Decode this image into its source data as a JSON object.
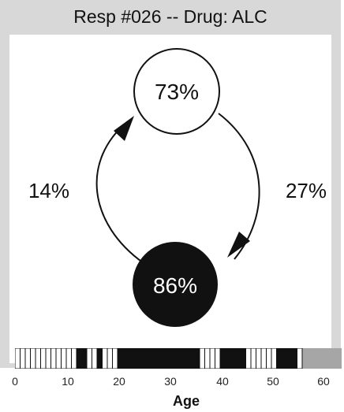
{
  "title": "Resp #026 -- Drug: ALC",
  "states": {
    "top": {
      "label": "73%"
    },
    "bottom": {
      "label": "86%"
    }
  },
  "transitions": {
    "left": {
      "label": "14%"
    },
    "right": {
      "label": "27%"
    }
  },
  "timeline": {
    "ages": [
      {
        "age": 1,
        "filled": false
      },
      {
        "age": 2,
        "filled": false
      },
      {
        "age": 3,
        "filled": false
      },
      {
        "age": 4,
        "filled": false
      },
      {
        "age": 5,
        "filled": false
      },
      {
        "age": 6,
        "filled": false
      },
      {
        "age": 7,
        "filled": false
      },
      {
        "age": 8,
        "filled": false
      },
      {
        "age": 9,
        "filled": false
      },
      {
        "age": 10,
        "filled": false
      },
      {
        "age": 11,
        "filled": false
      },
      {
        "age": 12,
        "filled": false
      },
      {
        "age": 13,
        "filled": true
      },
      {
        "age": 14,
        "filled": true
      },
      {
        "age": 15,
        "filled": false
      },
      {
        "age": 16,
        "filled": false
      },
      {
        "age": 17,
        "filled": true
      },
      {
        "age": 18,
        "filled": false
      },
      {
        "age": 19,
        "filled": false
      },
      {
        "age": 20,
        "filled": false
      },
      {
        "age": 21,
        "filled": true
      },
      {
        "age": 22,
        "filled": true
      },
      {
        "age": 23,
        "filled": true
      },
      {
        "age": 24,
        "filled": true
      },
      {
        "age": 25,
        "filled": true
      },
      {
        "age": 26,
        "filled": true
      },
      {
        "age": 27,
        "filled": true
      },
      {
        "age": 28,
        "filled": true
      },
      {
        "age": 29,
        "filled": true
      },
      {
        "age": 30,
        "filled": true
      },
      {
        "age": 31,
        "filled": true
      },
      {
        "age": 32,
        "filled": true
      },
      {
        "age": 33,
        "filled": true
      },
      {
        "age": 34,
        "filled": true
      },
      {
        "age": 35,
        "filled": true
      },
      {
        "age": 36,
        "filled": true
      },
      {
        "age": 37,
        "filled": false
      },
      {
        "age": 38,
        "filled": false
      },
      {
        "age": 39,
        "filled": false
      },
      {
        "age": 40,
        "filled": false
      },
      {
        "age": 41,
        "filled": true
      },
      {
        "age": 42,
        "filled": true
      },
      {
        "age": 43,
        "filled": true
      },
      {
        "age": 44,
        "filled": true
      },
      {
        "age": 45,
        "filled": true
      },
      {
        "age": 46,
        "filled": false
      },
      {
        "age": 47,
        "filled": false
      },
      {
        "age": 48,
        "filled": false
      },
      {
        "age": 49,
        "filled": false
      },
      {
        "age": 50,
        "filled": false
      },
      {
        "age": 51,
        "filled": false
      },
      {
        "age": 52,
        "filled": true
      },
      {
        "age": 53,
        "filled": true
      },
      {
        "age": 54,
        "filled": true
      },
      {
        "age": 55,
        "filled": true
      },
      {
        "age": 56,
        "filled": false
      }
    ],
    "gray_from_age": 56,
    "max_age": 63
  },
  "axis": {
    "ticks": [
      "0",
      "10",
      "20",
      "30",
      "40",
      "50",
      "60"
    ],
    "title": "Age"
  },
  "colors": {
    "frame": "#d8d8d8",
    "filled_node": "#111111",
    "open_node": "#ffffff",
    "timeline_gray": "#a6a6a6",
    "timeline_fill": "#111111"
  }
}
